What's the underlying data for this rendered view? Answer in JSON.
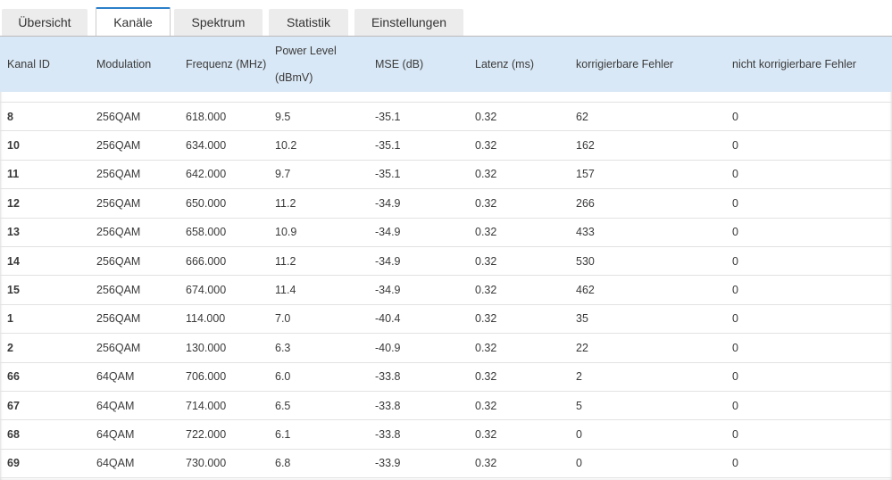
{
  "tabs": [
    "Übersicht",
    "Kanäle",
    "Spektrum",
    "Statistik",
    "Einstellungen"
  ],
  "active_tab": 1,
  "table": {
    "headers": [
      "Kanal ID",
      "Modulation",
      "Frequenz (MHz)",
      "Power Level (dBmV)",
      "MSE (dB)",
      "Latenz (ms)",
      "korrigierbare Fehler",
      "nicht korrigierbare Fehler"
    ],
    "rows": [
      [
        "8",
        "256QAM",
        "618.000",
        "9.5",
        "-35.1",
        "0.32",
        "62",
        "0"
      ],
      [
        "10",
        "256QAM",
        "634.000",
        "10.2",
        "-35.1",
        "0.32",
        "162",
        "0"
      ],
      [
        "11",
        "256QAM",
        "642.000",
        "9.7",
        "-35.1",
        "0.32",
        "157",
        "0"
      ],
      [
        "12",
        "256QAM",
        "650.000",
        "11.2",
        "-34.9",
        "0.32",
        "266",
        "0"
      ],
      [
        "13",
        "256QAM",
        "658.000",
        "10.9",
        "-34.9",
        "0.32",
        "433",
        "0"
      ],
      [
        "14",
        "256QAM",
        "666.000",
        "11.2",
        "-34.9",
        "0.32",
        "530",
        "0"
      ],
      [
        "15",
        "256QAM",
        "674.000",
        "11.4",
        "-34.9",
        "0.32",
        "462",
        "0"
      ],
      [
        "1",
        "256QAM",
        "114.000",
        "7.0",
        "-40.4",
        "0.32",
        "35",
        "0"
      ],
      [
        "2",
        "256QAM",
        "130.000",
        "6.3",
        "-40.9",
        "0.32",
        "22",
        "0"
      ],
      [
        "66",
        "64QAM",
        "706.000",
        "6.0",
        "-33.8",
        "0.32",
        "2",
        "0"
      ],
      [
        "67",
        "64QAM",
        "714.000",
        "6.5",
        "-33.8",
        "0.32",
        "5",
        "0"
      ],
      [
        "68",
        "64QAM",
        "722.000",
        "6.1",
        "-33.8",
        "0.32",
        "0",
        "0"
      ],
      [
        "69",
        "64QAM",
        "730.000",
        "6.8",
        "-33.9",
        "0.32",
        "0",
        "0"
      ]
    ]
  }
}
